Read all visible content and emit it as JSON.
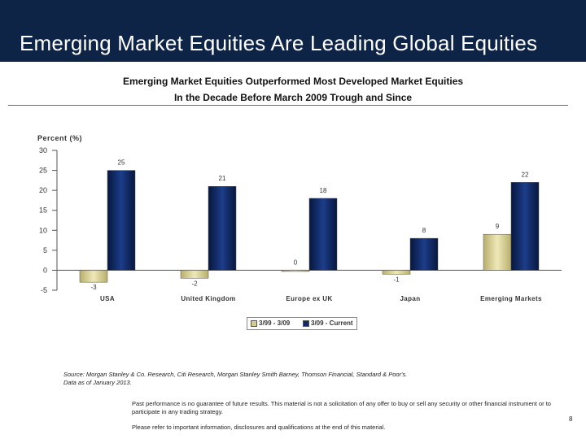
{
  "header": {
    "title": "Emerging Market Equities Are Leading Global Equities"
  },
  "subtitle_1": "Emerging Market Equities Outperformed Most Developed Market Equities",
  "subtitle_2": "In the Decade Before March 2009 Trough and Since",
  "chart_data": {
    "type": "bar",
    "ylabel": "Percent (%)",
    "ylim": [
      -5,
      30
    ],
    "yticks": [
      30,
      25,
      20,
      15,
      10,
      5,
      0,
      -5
    ],
    "categories": [
      "USA",
      "United Kingdom",
      "Europe ex UK",
      "Japan",
      "Emerging Markets"
    ],
    "series": [
      {
        "name": "3/99 - 3/09",
        "values": [
          -3,
          -2,
          0,
          -1,
          9
        ],
        "labels": [
          "-3",
          "-2",
          "0",
          "-1",
          "9"
        ],
        "color": "#d4cc8a"
      },
      {
        "name": "3/09 - Current",
        "values": [
          25,
          21,
          18,
          8,
          22
        ],
        "labels": [
          "25",
          "21",
          "18",
          "8",
          "22"
        ],
        "color": "#0f2a66"
      }
    ],
    "legend_position": "bottom-center"
  },
  "source": {
    "line1": "Source: Morgan Stanley & Co. Research, Citi Research, Morgan Stanley Smith Barney, Thomson Financial, Standard & Poor's.",
    "line2": "Data as of January 2013."
  },
  "disclaimer": "Past performance is no guarantee of future results. This material is not a solicitation of any offer to buy or sell any security or other financial instrument or to participate in any trading strategy.",
  "refer": "Please refer to important information, disclosures and qualifications at the end of this material.",
  "page_number": "8"
}
